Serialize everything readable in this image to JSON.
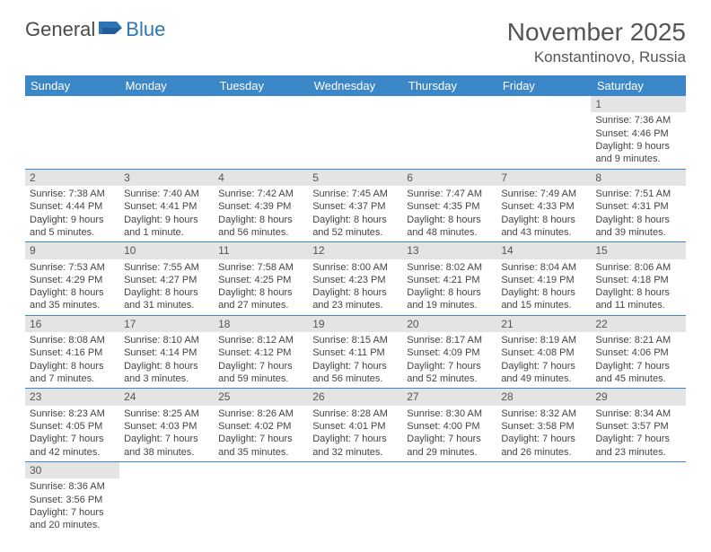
{
  "header": {
    "logo_text_1": "General",
    "logo_text_2": "Blue",
    "month_title": "November 2025",
    "location": "Konstantinovo, Russia"
  },
  "colors": {
    "header_bg": "#3b87c8",
    "header_text": "#ffffff",
    "daynum_bg": "#e4e4e4",
    "grid_line": "#3b87c8",
    "logo_blue": "#2e75b6",
    "body_text": "#444444"
  },
  "day_headers": [
    "Sunday",
    "Monday",
    "Tuesday",
    "Wednesday",
    "Thursday",
    "Friday",
    "Saturday"
  ],
  "weeks": [
    [
      {
        "blank": true
      },
      {
        "blank": true
      },
      {
        "blank": true
      },
      {
        "blank": true
      },
      {
        "blank": true
      },
      {
        "blank": true
      },
      {
        "day": "1",
        "sunrise": "Sunrise: 7:36 AM",
        "sunset": "Sunset: 4:46 PM",
        "daylight1": "Daylight: 9 hours",
        "daylight2": "and 9 minutes."
      }
    ],
    [
      {
        "day": "2",
        "sunrise": "Sunrise: 7:38 AM",
        "sunset": "Sunset: 4:44 PM",
        "daylight1": "Daylight: 9 hours",
        "daylight2": "and 5 minutes."
      },
      {
        "day": "3",
        "sunrise": "Sunrise: 7:40 AM",
        "sunset": "Sunset: 4:41 PM",
        "daylight1": "Daylight: 9 hours",
        "daylight2": "and 1 minute."
      },
      {
        "day": "4",
        "sunrise": "Sunrise: 7:42 AM",
        "sunset": "Sunset: 4:39 PM",
        "daylight1": "Daylight: 8 hours",
        "daylight2": "and 56 minutes."
      },
      {
        "day": "5",
        "sunrise": "Sunrise: 7:45 AM",
        "sunset": "Sunset: 4:37 PM",
        "daylight1": "Daylight: 8 hours",
        "daylight2": "and 52 minutes."
      },
      {
        "day": "6",
        "sunrise": "Sunrise: 7:47 AM",
        "sunset": "Sunset: 4:35 PM",
        "daylight1": "Daylight: 8 hours",
        "daylight2": "and 48 minutes."
      },
      {
        "day": "7",
        "sunrise": "Sunrise: 7:49 AM",
        "sunset": "Sunset: 4:33 PM",
        "daylight1": "Daylight: 8 hours",
        "daylight2": "and 43 minutes."
      },
      {
        "day": "8",
        "sunrise": "Sunrise: 7:51 AM",
        "sunset": "Sunset: 4:31 PM",
        "daylight1": "Daylight: 8 hours",
        "daylight2": "and 39 minutes."
      }
    ],
    [
      {
        "day": "9",
        "sunrise": "Sunrise: 7:53 AM",
        "sunset": "Sunset: 4:29 PM",
        "daylight1": "Daylight: 8 hours",
        "daylight2": "and 35 minutes."
      },
      {
        "day": "10",
        "sunrise": "Sunrise: 7:55 AM",
        "sunset": "Sunset: 4:27 PM",
        "daylight1": "Daylight: 8 hours",
        "daylight2": "and 31 minutes."
      },
      {
        "day": "11",
        "sunrise": "Sunrise: 7:58 AM",
        "sunset": "Sunset: 4:25 PM",
        "daylight1": "Daylight: 8 hours",
        "daylight2": "and 27 minutes."
      },
      {
        "day": "12",
        "sunrise": "Sunrise: 8:00 AM",
        "sunset": "Sunset: 4:23 PM",
        "daylight1": "Daylight: 8 hours",
        "daylight2": "and 23 minutes."
      },
      {
        "day": "13",
        "sunrise": "Sunrise: 8:02 AM",
        "sunset": "Sunset: 4:21 PM",
        "daylight1": "Daylight: 8 hours",
        "daylight2": "and 19 minutes."
      },
      {
        "day": "14",
        "sunrise": "Sunrise: 8:04 AM",
        "sunset": "Sunset: 4:19 PM",
        "daylight1": "Daylight: 8 hours",
        "daylight2": "and 15 minutes."
      },
      {
        "day": "15",
        "sunrise": "Sunrise: 8:06 AM",
        "sunset": "Sunset: 4:18 PM",
        "daylight1": "Daylight: 8 hours",
        "daylight2": "and 11 minutes."
      }
    ],
    [
      {
        "day": "16",
        "sunrise": "Sunrise: 8:08 AM",
        "sunset": "Sunset: 4:16 PM",
        "daylight1": "Daylight: 8 hours",
        "daylight2": "and 7 minutes."
      },
      {
        "day": "17",
        "sunrise": "Sunrise: 8:10 AM",
        "sunset": "Sunset: 4:14 PM",
        "daylight1": "Daylight: 8 hours",
        "daylight2": "and 3 minutes."
      },
      {
        "day": "18",
        "sunrise": "Sunrise: 8:12 AM",
        "sunset": "Sunset: 4:12 PM",
        "daylight1": "Daylight: 7 hours",
        "daylight2": "and 59 minutes."
      },
      {
        "day": "19",
        "sunrise": "Sunrise: 8:15 AM",
        "sunset": "Sunset: 4:11 PM",
        "daylight1": "Daylight: 7 hours",
        "daylight2": "and 56 minutes."
      },
      {
        "day": "20",
        "sunrise": "Sunrise: 8:17 AM",
        "sunset": "Sunset: 4:09 PM",
        "daylight1": "Daylight: 7 hours",
        "daylight2": "and 52 minutes."
      },
      {
        "day": "21",
        "sunrise": "Sunrise: 8:19 AM",
        "sunset": "Sunset: 4:08 PM",
        "daylight1": "Daylight: 7 hours",
        "daylight2": "and 49 minutes."
      },
      {
        "day": "22",
        "sunrise": "Sunrise: 8:21 AM",
        "sunset": "Sunset: 4:06 PM",
        "daylight1": "Daylight: 7 hours",
        "daylight2": "and 45 minutes."
      }
    ],
    [
      {
        "day": "23",
        "sunrise": "Sunrise: 8:23 AM",
        "sunset": "Sunset: 4:05 PM",
        "daylight1": "Daylight: 7 hours",
        "daylight2": "and 42 minutes."
      },
      {
        "day": "24",
        "sunrise": "Sunrise: 8:25 AM",
        "sunset": "Sunset: 4:03 PM",
        "daylight1": "Daylight: 7 hours",
        "daylight2": "and 38 minutes."
      },
      {
        "day": "25",
        "sunrise": "Sunrise: 8:26 AM",
        "sunset": "Sunset: 4:02 PM",
        "daylight1": "Daylight: 7 hours",
        "daylight2": "and 35 minutes."
      },
      {
        "day": "26",
        "sunrise": "Sunrise: 8:28 AM",
        "sunset": "Sunset: 4:01 PM",
        "daylight1": "Daylight: 7 hours",
        "daylight2": "and 32 minutes."
      },
      {
        "day": "27",
        "sunrise": "Sunrise: 8:30 AM",
        "sunset": "Sunset: 4:00 PM",
        "daylight1": "Daylight: 7 hours",
        "daylight2": "and 29 minutes."
      },
      {
        "day": "28",
        "sunrise": "Sunrise: 8:32 AM",
        "sunset": "Sunset: 3:58 PM",
        "daylight1": "Daylight: 7 hours",
        "daylight2": "and 26 minutes."
      },
      {
        "day": "29",
        "sunrise": "Sunrise: 8:34 AM",
        "sunset": "Sunset: 3:57 PM",
        "daylight1": "Daylight: 7 hours",
        "daylight2": "and 23 minutes."
      }
    ],
    [
      {
        "day": "30",
        "sunrise": "Sunrise: 8:36 AM",
        "sunset": "Sunset: 3:56 PM",
        "daylight1": "Daylight: 7 hours",
        "daylight2": "and 20 minutes."
      },
      {
        "blank": true
      },
      {
        "blank": true
      },
      {
        "blank": true
      },
      {
        "blank": true
      },
      {
        "blank": true
      },
      {
        "blank": true
      }
    ]
  ]
}
